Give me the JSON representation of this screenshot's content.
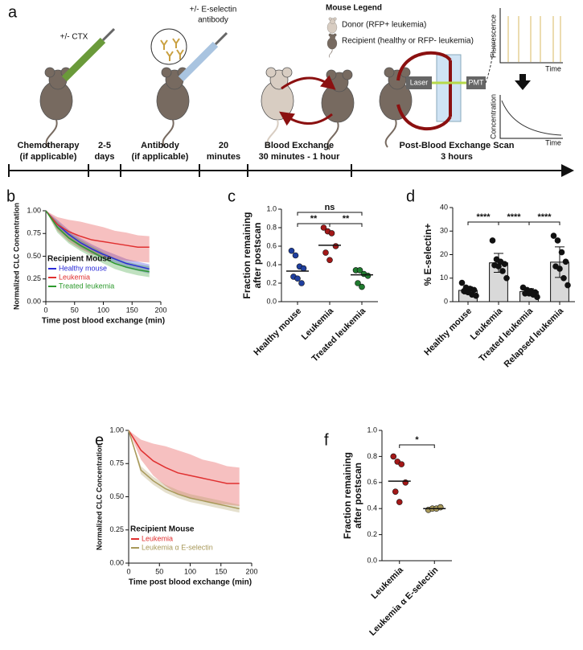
{
  "schematic": {
    "panel": "a",
    "labels": {
      "ctx": "+/- CTX",
      "antibody": [
        "+/- E-selectin",
        "antibody"
      ],
      "legend_title": "Mouse Legend",
      "donor": "Donor (RFP+ leukemia)",
      "recipient": "Recipient (healthy or RFP- leukemia)",
      "laser": "Laser",
      "pmt": "PMT",
      "fluorescence": "Fluorescence",
      "time_top": "Time",
      "concentration": "Concentration",
      "time_bottom": "Time"
    },
    "timeline": [
      [
        "Chemotherapy",
        "(if applicable)"
      ],
      [
        "2-5",
        "days"
      ],
      [
        "Antibody",
        "(if applicable)"
      ],
      [
        "20",
        "minutes"
      ],
      [
        "Blood Exchange",
        "30 minutes - 1 hour"
      ],
      [
        "Post-Blood Exchange Scan",
        "3 hours"
      ]
    ]
  },
  "chart_data": [
    {
      "panel": "b",
      "type": "line",
      "x_label": "Time post blood exchange (min)",
      "y_label": "Normalized CLC Concentration",
      "legend_title": "Recipient Mouse",
      "legend": "lower left",
      "x": [
        0,
        20,
        40,
        60,
        80,
        100,
        120,
        140,
        160,
        180
      ],
      "xlim": [
        0,
        200
      ],
      "xticks": [
        0,
        50,
        100,
        150,
        200
      ],
      "ylim": [
        0,
        1
      ],
      "yticks": [
        {
          "value": 0,
          "label": "0.00"
        },
        0.25,
        {
          "value": 0.5,
          "label": "0.50"
        },
        0.75,
        {
          "value": 1,
          "label": "1.00"
        }
      ],
      "series": [
        {
          "name": "Healthy mouse",
          "color": "#2a2ad8",
          "values": [
            1.0,
            0.85,
            0.74,
            0.65,
            0.58,
            0.52,
            0.47,
            0.42,
            0.39,
            0.36
          ],
          "lower": [
            1.0,
            0.8,
            0.69,
            0.6,
            0.53,
            0.47,
            0.42,
            0.37,
            0.34,
            0.31
          ],
          "upper": [
            1.0,
            0.9,
            0.79,
            0.7,
            0.63,
            0.57,
            0.52,
            0.47,
            0.44,
            0.41
          ]
        },
        {
          "name": "Leukemia",
          "color": "#e03030",
          "values": [
            1.0,
            0.85,
            0.77,
            0.72,
            0.68,
            0.66,
            0.64,
            0.62,
            0.6,
            0.6
          ],
          "lower": [
            1.0,
            0.78,
            0.66,
            0.58,
            0.52,
            0.49,
            0.47,
            0.45,
            0.44,
            0.43
          ],
          "upper": [
            1.0,
            0.93,
            0.9,
            0.88,
            0.85,
            0.82,
            0.78,
            0.76,
            0.73,
            0.72
          ]
        },
        {
          "name": "Treated leukemia",
          "color": "#2e9a2e",
          "values": [
            1.0,
            0.82,
            0.7,
            0.62,
            0.55,
            0.48,
            0.42,
            0.38,
            0.35,
            0.33
          ],
          "lower": [
            1.0,
            0.76,
            0.64,
            0.56,
            0.49,
            0.42,
            0.36,
            0.32,
            0.29,
            0.27
          ],
          "upper": [
            1.0,
            0.88,
            0.76,
            0.68,
            0.61,
            0.54,
            0.48,
            0.44,
            0.41,
            0.39
          ]
        }
      ]
    },
    {
      "panel": "c",
      "type": "strip",
      "y_label": [
        "Fraction remaining",
        "after postscan"
      ],
      "categories": [
        "Healthy mouse",
        "Leukemia",
        "Treated leukemia"
      ],
      "colors": [
        "#1f3f9f",
        "#a31818",
        "#1f7a2e"
      ],
      "points": [
        [
          0.55,
          0.5,
          0.38,
          0.36,
          0.27,
          0.25,
          0.2
        ],
        [
          0.8,
          0.76,
          0.74,
          0.6,
          0.53,
          0.45
        ],
        [
          0.34,
          0.34,
          0.3,
          0.28,
          0.2,
          0.16
        ]
      ],
      "means": [
        0.33,
        0.61,
        0.29
      ],
      "ylim": [
        0,
        1
      ],
      "yticks": [
        {
          "value": 0,
          "label": "0.0"
        },
        0.2,
        0.4,
        0.6,
        0.8,
        {
          "value": 1,
          "label": "1.0"
        }
      ],
      "comparisons": [
        {
          "pair": [
            "Healthy mouse",
            "Leukemia"
          ],
          "label": "**"
        },
        {
          "pair": [
            "Healthy mouse",
            "Treated leukemia"
          ],
          "label": "ns"
        },
        {
          "pair": [
            "Leukemia",
            "Treated leukemia"
          ],
          "label": "**"
        }
      ]
    },
    {
      "panel": "d",
      "type": "bar",
      "y_label": "% E-selectin+",
      "categories": [
        "Healthy mouse",
        "Leukemia",
        "Treated leukemia",
        "Relapsed leukemia"
      ],
      "color": "#d9d9d9",
      "values": [
        4.8,
        16.5,
        4.3,
        16.8
      ],
      "errors": [
        1.5,
        4.0,
        1.2,
        6.5
      ],
      "points": [
        [
          8,
          6,
          5.5,
          5,
          4.5,
          4,
          3,
          2.5
        ],
        [
          26,
          18,
          17,
          16,
          15.5,
          15,
          13,
          10
        ],
        [
          6,
          5,
          4.5,
          4,
          3.5,
          3.5,
          3,
          2
        ],
        [
          28,
          26,
          21,
          17,
          15,
          14,
          10,
          7
        ]
      ],
      "ylim": [
        0,
        40
      ],
      "yticks": [
        0,
        10,
        20,
        30,
        40
      ],
      "comparisons": [
        {
          "pair": [
            "Healthy mouse",
            "Leukemia"
          ],
          "label": "****"
        },
        {
          "pair": [
            "Leukemia",
            "Treated leukemia"
          ],
          "label": "****"
        },
        {
          "pair": [
            "Treated leukemia",
            "Relapsed leukemia"
          ],
          "label": "****"
        }
      ]
    },
    {
      "panel": "e",
      "type": "line",
      "x_label": "Time post blood exchange (min)",
      "y_label": "Normalized CLC Concentration",
      "legend_title": "Recipient Mouse",
      "legend": "lower left",
      "x": [
        0,
        20,
        40,
        60,
        80,
        100,
        120,
        140,
        160,
        180
      ],
      "xlim": [
        0,
        200
      ],
      "xticks": [
        0,
        50,
        100,
        150,
        200
      ],
      "ylim": [
        0,
        1
      ],
      "yticks": [
        {
          "value": 0,
          "label": "0.00"
        },
        0.25,
        {
          "value": 0.5,
          "label": "0.50"
        },
        0.75,
        {
          "value": 1,
          "label": "1.00"
        }
      ],
      "series": [
        {
          "name": "Leukemia",
          "color": "#e03030",
          "values": [
            1.0,
            0.85,
            0.77,
            0.72,
            0.68,
            0.66,
            0.64,
            0.62,
            0.6,
            0.6
          ],
          "lower": [
            1.0,
            0.78,
            0.66,
            0.58,
            0.52,
            0.49,
            0.47,
            0.45,
            0.44,
            0.43
          ],
          "upper": [
            1.0,
            0.93,
            0.9,
            0.88,
            0.85,
            0.82,
            0.78,
            0.76,
            0.73,
            0.72
          ]
        },
        {
          "name": "Leukemia α E-selectin",
          "color": "#a8995a",
          "values": [
            1.0,
            0.7,
            0.62,
            0.56,
            0.52,
            0.49,
            0.47,
            0.45,
            0.43,
            0.41
          ],
          "lower": [
            1.0,
            0.67,
            0.59,
            0.53,
            0.49,
            0.46,
            0.44,
            0.42,
            0.4,
            0.38
          ],
          "upper": [
            1.0,
            0.73,
            0.65,
            0.59,
            0.55,
            0.52,
            0.5,
            0.48,
            0.46,
            0.44
          ]
        }
      ]
    },
    {
      "panel": "f",
      "type": "strip",
      "y_label": [
        "Fraction remaining",
        "after postscan"
      ],
      "categories": [
        "Leukemia",
        "Leukemia α E-selectin"
      ],
      "colors": [
        "#a31818",
        "#a8995a"
      ],
      "points": [
        [
          0.8,
          0.76,
          0.74,
          0.6,
          0.53,
          0.45
        ],
        [
          0.39,
          0.4,
          0.4,
          0.41
        ]
      ],
      "means": [
        0.61,
        0.4
      ],
      "ylim": [
        0,
        1
      ],
      "yticks": [
        {
          "value": 0,
          "label": "0.0"
        },
        0.2,
        0.4,
        0.6,
        0.8,
        {
          "value": 1,
          "label": "1.0"
        }
      ],
      "comparisons": [
        {
          "pair": [
            "Leukemia",
            "Leukemia α E-selectin"
          ],
          "label": "*"
        }
      ]
    }
  ]
}
